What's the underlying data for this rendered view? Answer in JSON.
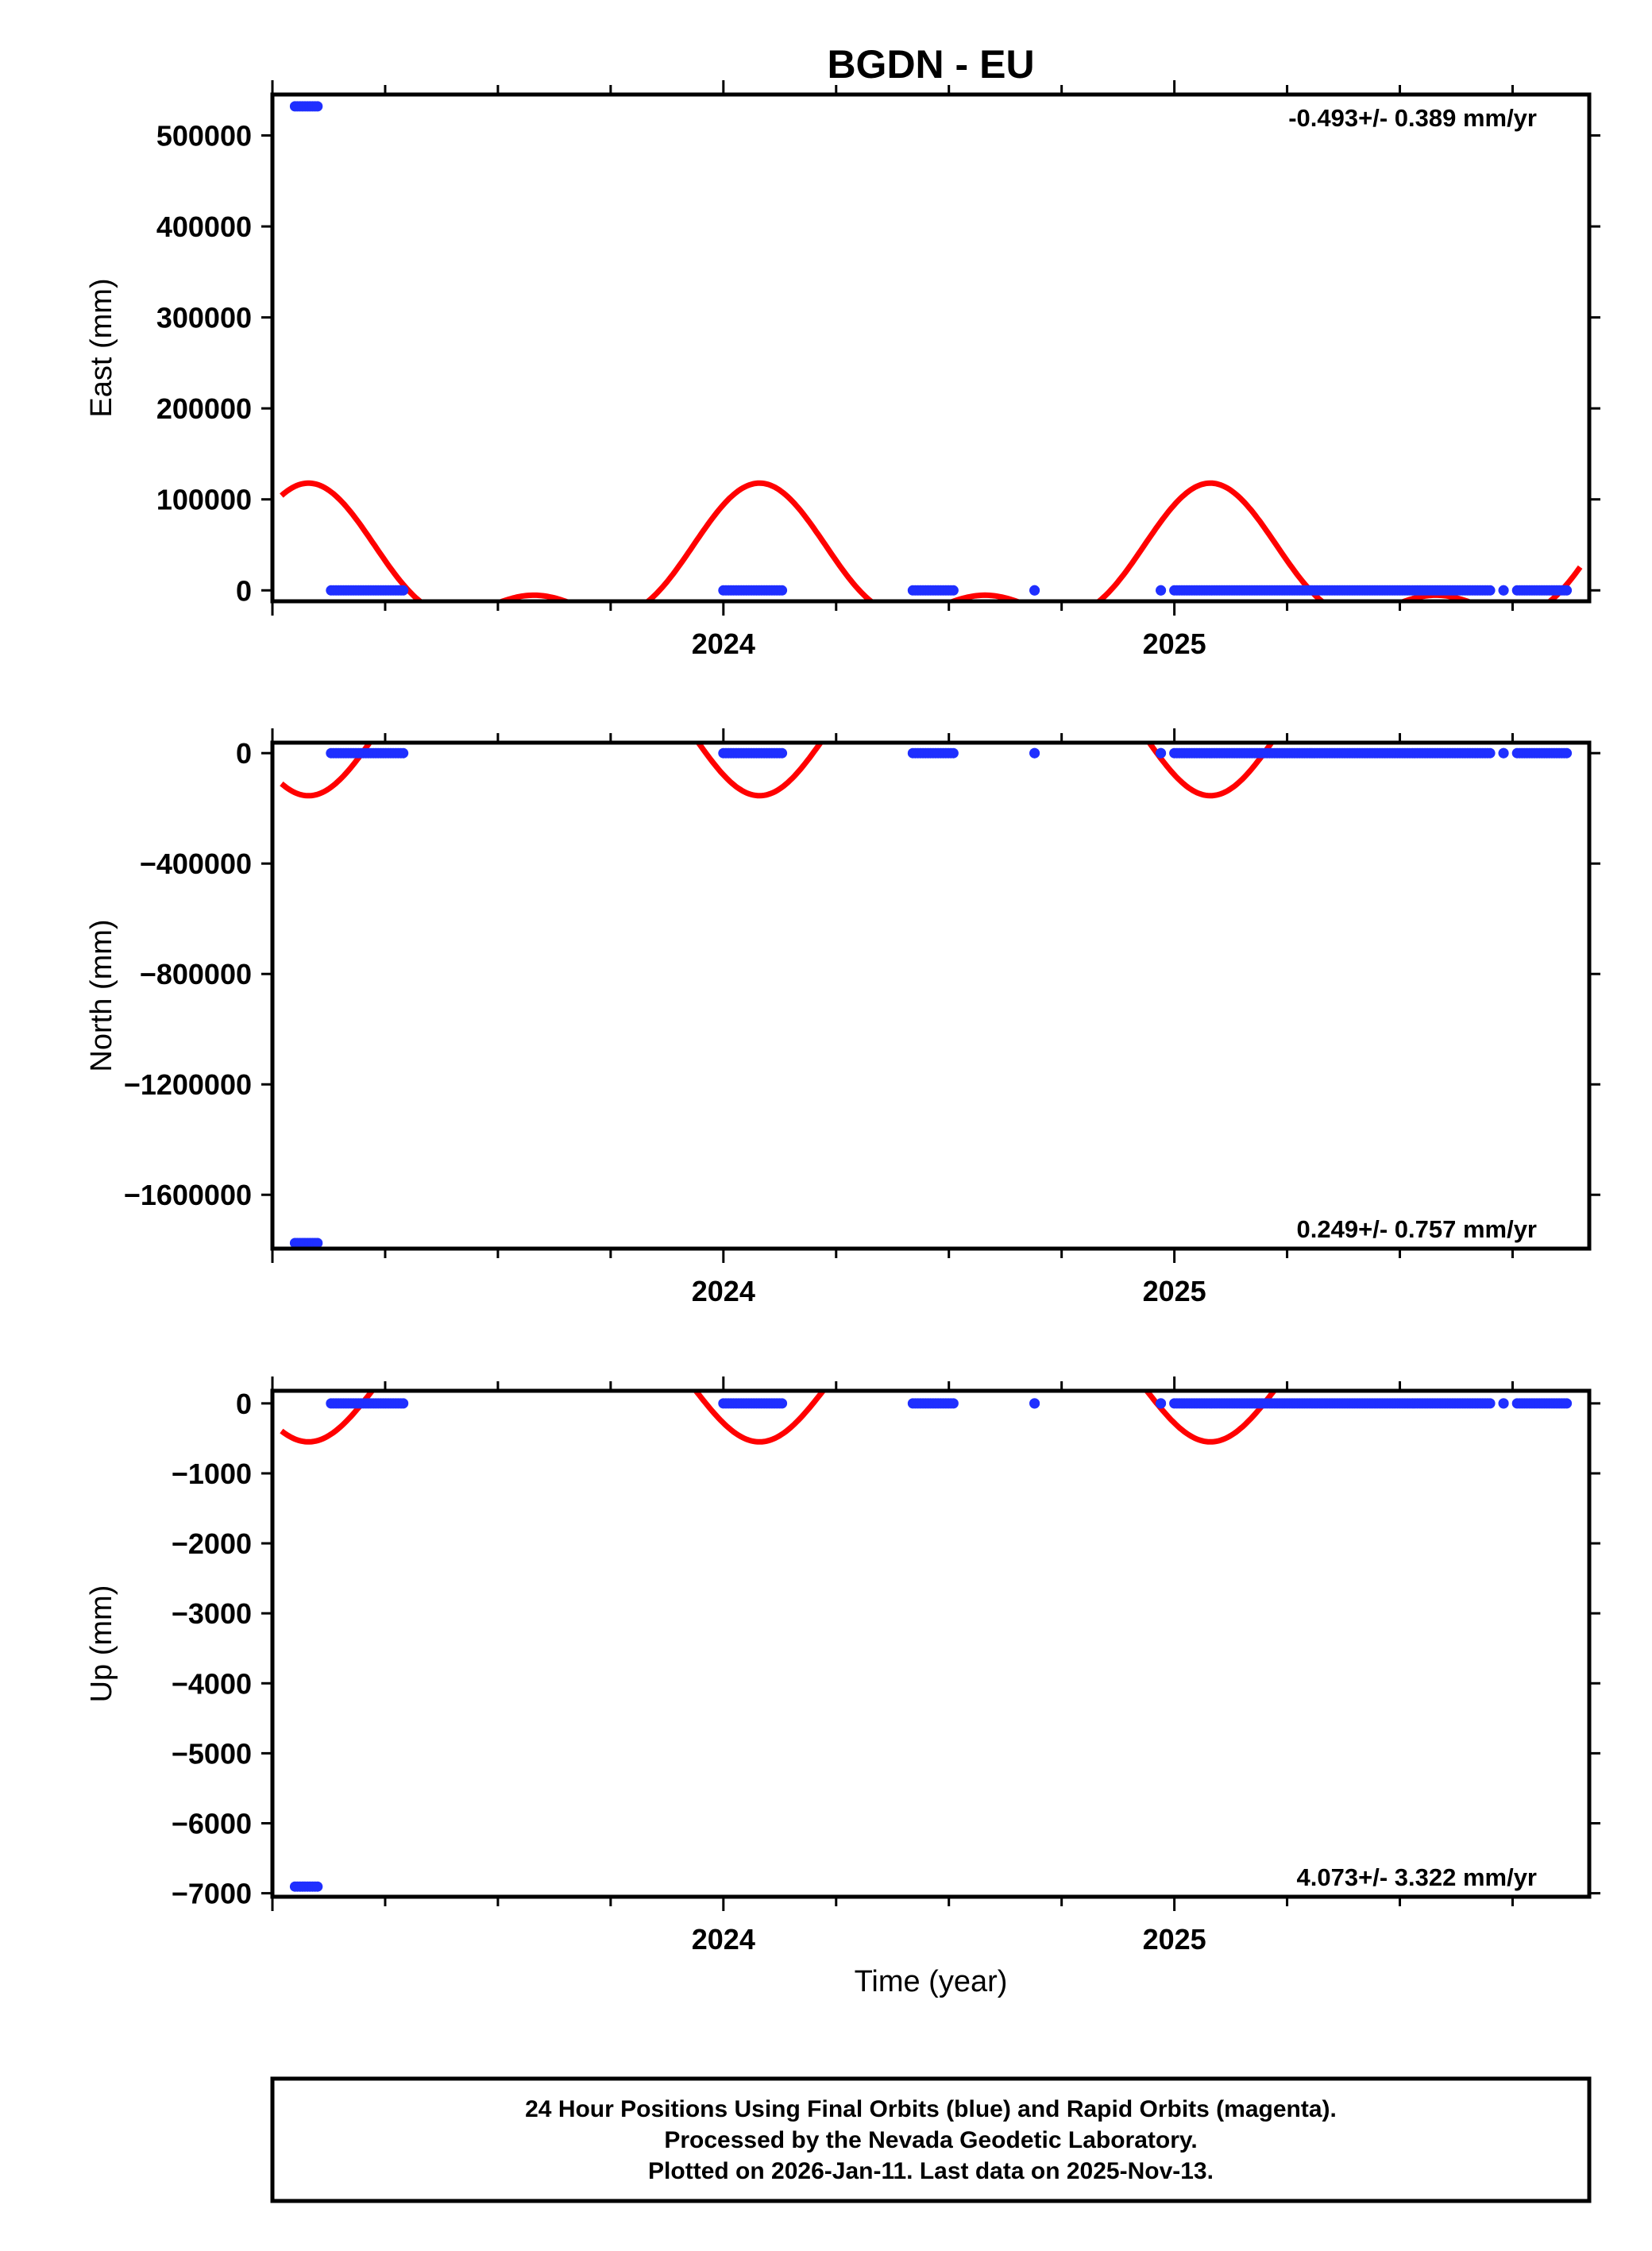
{
  "title": "BGDN - EU",
  "colors": {
    "data": "#1f2fff",
    "model": "#ff0000",
    "frame": "#000000"
  },
  "chart_data": [
    {
      "type": "scatter",
      "panel": "east",
      "ylabel": "East (mm)",
      "xlim": [
        2023.0,
        2025.92
      ],
      "ylim": [
        -12000,
        545000
      ],
      "yticks": [
        0,
        100000,
        200000,
        300000,
        400000,
        500000
      ],
      "ytick_labels": [
        "0",
        "100000",
        "200000",
        "300000",
        "400000",
        "500000"
      ],
      "xticks": [
        2024,
        2025
      ],
      "xtick_labels": [
        "2024",
        "2025"
      ],
      "rate": "-0.493+/- 0.389 mm/yr",
      "rate_position": "top-right",
      "series": [
        {
          "role": "data",
          "segments": [
            {
              "x": [
                2023.05,
                2023.1
              ],
              "y": 532000
            },
            {
              "x": [
                2023.13,
                2023.29
              ],
              "y": 0
            },
            {
              "x": [
                2024.0,
                2024.13
              ],
              "y": 0
            },
            {
              "x": [
                2024.42,
                2024.51
              ],
              "y": 0
            },
            {
              "x": [
                2024.69,
                2024.69
              ],
              "y": 0
            },
            {
              "x": [
                2024.97,
                2024.97
              ],
              "y": 0
            },
            {
              "x": [
                2025.0,
                2025.7
              ],
              "y": 0
            },
            {
              "x": [
                2025.73,
                2025.73
              ],
              "y": 0
            },
            {
              "x": [
                2025.76,
                2025.87
              ],
              "y": 0
            }
          ]
        },
        {
          "role": "model",
          "amplitude": 112000,
          "base": 35000,
          "period_years": 1.0,
          "semi_amplitude": 0.62
        }
      ]
    },
    {
      "type": "scatter",
      "panel": "north",
      "ylabel": "North (mm)",
      "xlim": [
        2023.0,
        2025.92
      ],
      "ylim": [
        -1795000,
        38000
      ],
      "yticks": [
        0,
        -400000,
        -800000,
        -1200000,
        -1600000
      ],
      "ytick_labels": [
        "0",
        "−400000",
        "−800000",
        "−1200000",
        "−1600000"
      ],
      "xticks": [
        2024,
        2025
      ],
      "xtick_labels": [
        "2024",
        "2025"
      ],
      "rate": "0.249+/- 0.757 mm/yr",
      "rate_position": "bottom-right",
      "series": [
        {
          "role": "data",
          "segments": [
            {
              "x": [
                2023.05,
                2023.1
              ],
              "y": -1775000
            },
            {
              "x": [
                2023.13,
                2023.29
              ],
              "y": 0
            },
            {
              "x": [
                2024.0,
                2024.13
              ],
              "y": 0
            },
            {
              "x": [
                2024.42,
                2024.51
              ],
              "y": 0
            },
            {
              "x": [
                2024.69,
                2024.69
              ],
              "y": 0
            },
            {
              "x": [
                2024.97,
                2024.97
              ],
              "y": 0
            },
            {
              "x": [
                2025.0,
                2025.7
              ],
              "y": 0
            },
            {
              "x": [
                2025.73,
                2025.73
              ],
              "y": 0
            },
            {
              "x": [
                2025.76,
                2025.87
              ],
              "y": 0
            }
          ]
        },
        {
          "role": "model",
          "amplitude": -357000,
          "base": 110000,
          "period_years": 1.0,
          "semi_amplitude": 0.62
        }
      ]
    },
    {
      "type": "scatter",
      "panel": "up",
      "ylabel": "Up (mm)",
      "xlim": [
        2023.0,
        2025.92
      ],
      "ylim": [
        -7050,
        180
      ],
      "yticks": [
        0,
        -1000,
        -2000,
        -3000,
        -4000,
        -5000,
        -6000,
        -7000
      ],
      "ytick_labels": [
        "0",
        "−1000",
        "−2000",
        "−3000",
        "−4000",
        "−5000",
        "−6000",
        "−7000"
      ],
      "xticks": [
        2024,
        2025
      ],
      "xtick_labels": [
        "2024",
        "2025"
      ],
      "rate": "4.073+/- 3.322 mm/yr",
      "rate_position": "bottom-right",
      "series": [
        {
          "role": "data",
          "segments": [
            {
              "x": [
                2023.05,
                2023.1
              ],
              "y": -6905
            },
            {
              "x": [
                2023.13,
                2023.29
              ],
              "y": 0
            },
            {
              "x": [
                2024.0,
                2024.13
              ],
              "y": 0
            },
            {
              "x": [
                2024.42,
                2024.51
              ],
              "y": 0
            },
            {
              "x": [
                2024.69,
                2024.69
              ],
              "y": 0
            },
            {
              "x": [
                2024.97,
                2024.97
              ],
              "y": 0
            },
            {
              "x": [
                2025.0,
                2025.7
              ],
              "y": 0
            },
            {
              "x": [
                2025.73,
                2025.73
              ],
              "y": 0
            },
            {
              "x": [
                2025.76,
                2025.87
              ],
              "y": 0
            }
          ]
        },
        {
          "role": "model",
          "amplitude": -1270,
          "base": 390,
          "period_years": 1.0,
          "semi_amplitude": 0.62
        }
      ]
    }
  ],
  "xlabel": "Time (year)",
  "footer": {
    "line1": "24 Hour Positions Using Final Orbits (blue) and Rapid Orbits (magenta).",
    "line2": "Processed by the Nevada Geodetic Laboratory.",
    "line3": "Plotted on 2026-Jan-11. Last data on 2025-Nov-13."
  }
}
